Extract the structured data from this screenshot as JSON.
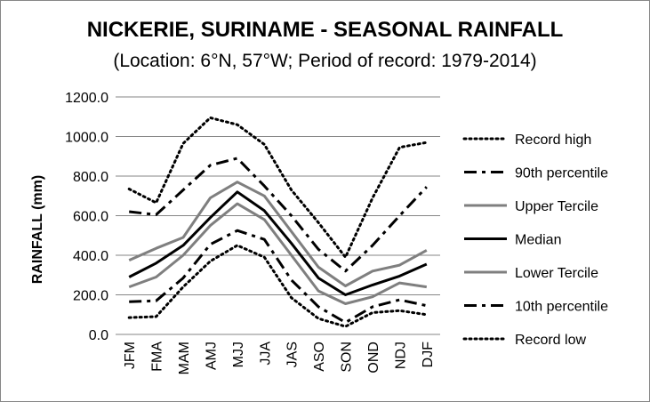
{
  "chart_data": {
    "type": "line",
    "title": "NICKERIE, SURINAME - SEASONAL RAINFALL",
    "subtitle": "(Location: 6°N, 57°W; Period of record: 1979-2014)",
    "xlabel": "",
    "ylabel": "RAINFALL (mm)",
    "ylim": [
      0,
      1200
    ],
    "yticks": [
      0,
      200,
      400,
      600,
      800,
      1000,
      1200
    ],
    "ytick_labels": [
      "0.0",
      "200.0",
      "400.0",
      "600.0",
      "800.0",
      "1000.0",
      "1200.0"
    ],
    "grid": true,
    "legend_position": "right",
    "categories": [
      "JFM",
      "FMA",
      "MAM",
      "AMJ",
      "MJJ",
      "JJA",
      "JAS",
      "ASO",
      "SON",
      "OND",
      "NDJ",
      "DJF"
    ],
    "series": [
      {
        "name": "Record high",
        "style": "dotted",
        "color": "#000000",
        "width": 3,
        "values": [
          735,
          665,
          965,
          1095,
          1060,
          960,
          730,
          565,
          390,
          690,
          945,
          970
        ]
      },
      {
        "name": "90th percentile",
        "style": "dashdot",
        "color": "#000000",
        "width": 3,
        "values": [
          620,
          605,
          730,
          855,
          890,
          750,
          600,
          430,
          320,
          450,
          600,
          745
        ]
      },
      {
        "name": "Upper Tercile",
        "style": "solid",
        "color": "#7f7f7f",
        "width": 3,
        "values": [
          375,
          435,
          490,
          690,
          770,
          700,
          520,
          340,
          245,
          320,
          350,
          425
        ]
      },
      {
        "name": "Median",
        "style": "solid",
        "color": "#000000",
        "width": 3,
        "values": [
          290,
          360,
          450,
          590,
          720,
          625,
          460,
          285,
          200,
          250,
          295,
          355
        ]
      },
      {
        "name": "Lower Tercile",
        "style": "solid",
        "color": "#7f7f7f",
        "width": 3,
        "values": [
          240,
          290,
          400,
          550,
          660,
          580,
          400,
          220,
          155,
          190,
          260,
          240
        ]
      },
      {
        "name": "10th percentile",
        "style": "dashdot",
        "color": "#000000",
        "width": 3,
        "values": [
          165,
          170,
          285,
          455,
          525,
          480,
          275,
          140,
          60,
          140,
          175,
          145
        ]
      },
      {
        "name": "Record low",
        "style": "dotted",
        "color": "#000000",
        "width": 3,
        "values": [
          85,
          90,
          240,
          370,
          450,
          390,
          185,
          80,
          40,
          110,
          120,
          100
        ]
      }
    ]
  }
}
